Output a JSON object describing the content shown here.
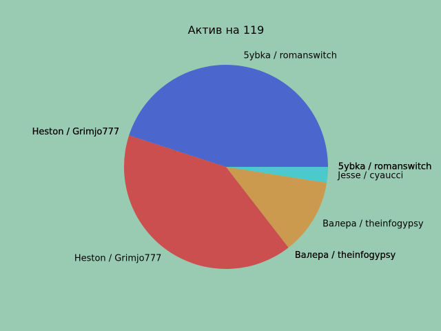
{
  "chart_data": {
    "type": "pie",
    "title": "Актив на 119",
    "background": "#99cbb3",
    "slices": [
      {
        "label": "5ybka / romanswitch",
        "value": 0.0001,
        "color": "#4b66cc"
      },
      {
        "label": "5ybka / romanswitch",
        "value": 0.0001,
        "color": "#4b66cc"
      },
      {
        "label": "5ybka / romanswitch",
        "value": 0.0001,
        "color": "#4b66cc"
      },
      {
        "label": "5ybka / romanswitch",
        "value": 0.0001,
        "color": "#4b66cc"
      },
      {
        "label": "5ybka / romanswitch",
        "value": 45.0,
        "color": "#4b66cc"
      },
      {
        "label": "Heston / Grimjo777",
        "value": 0.0001,
        "color": "#cb4f4f"
      },
      {
        "label": "Heston / Grimjo777",
        "value": 0.0001,
        "color": "#cb4f4f"
      },
      {
        "label": "Heston / Grimjo777",
        "value": 0.0001,
        "color": "#cb4f4f"
      },
      {
        "label": "Heston / Grimjo777",
        "value": 40.5,
        "color": "#cb4f4f"
      },
      {
        "label": "Валера / theinfogypsy",
        "value": 0.0001,
        "color": "#cc9a4e"
      },
      {
        "label": "Валера / theinfogypsy",
        "value": 0.0001,
        "color": "#cc9a4e"
      },
      {
        "label": "Валера / theinfogypsy",
        "value": 0.0001,
        "color": "#cc9a4e"
      },
      {
        "label": "Валера / theinfogypsy",
        "value": 12.0,
        "color": "#cc9a4e"
      },
      {
        "label": "Jesse / cyaucci",
        "value": 2.5,
        "color": "#4ccacb"
      }
    ]
  }
}
